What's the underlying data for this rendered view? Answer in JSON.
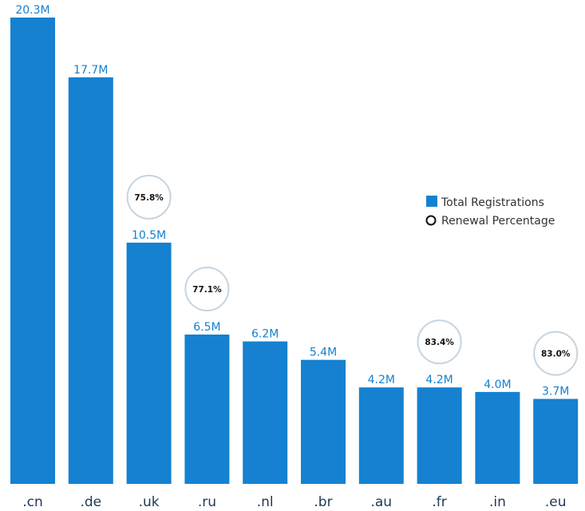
{
  "chart_data": {
    "type": "bar",
    "categories": [
      ".cn",
      ".de",
      ".uk",
      ".ru",
      ".nl",
      ".br",
      ".au",
      ".fr",
      ".in",
      ".eu"
    ],
    "series": [
      {
        "name": "Total Registrations",
        "values": [
          20.3,
          17.7,
          10.5,
          6.5,
          6.2,
          5.4,
          4.2,
          4.2,
          4.0,
          3.7
        ],
        "labels": [
          "20.3M",
          "17.7M",
          "10.5M",
          "6.5M",
          "6.2M",
          "5.4M",
          "4.2M",
          "4.2M",
          "4.0M",
          "3.7M"
        ]
      },
      {
        "name": "Renewal Percentage",
        "values": [
          null,
          null,
          75.8,
          77.1,
          null,
          null,
          null,
          83.4,
          null,
          83.0
        ],
        "labels": [
          null,
          null,
          "75.8%",
          "77.1%",
          null,
          null,
          null,
          "83.4%",
          null,
          "83.0%"
        ]
      }
    ],
    "units": "M",
    "ylim": [
      0,
      20.3
    ],
    "grid": false,
    "legend": {
      "placement": "right",
      "entries": [
        "Total Registrations",
        "Renewal Percentage"
      ]
    }
  },
  "colors": {
    "bar": "#1581d0",
    "value_label": "#1581d0",
    "category_label": "#1f3855",
    "circle_stroke": "#c7d4df",
    "pct_label": "#111111",
    "legend_text": "#333333",
    "legend_marker_circle": "#111111"
  }
}
